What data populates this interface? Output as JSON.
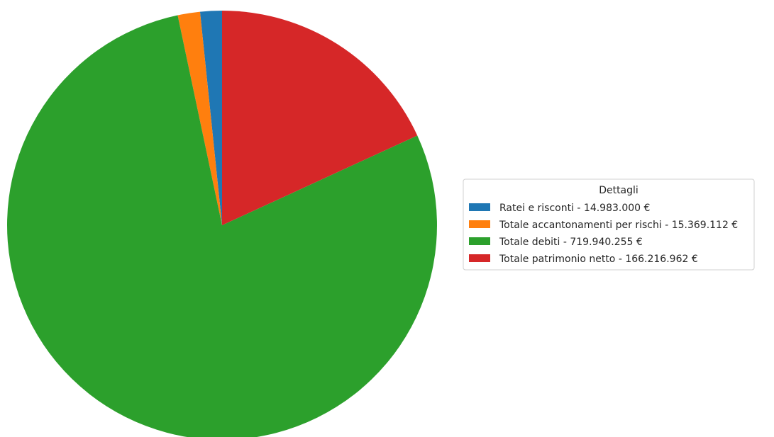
{
  "chart_data": {
    "type": "pie",
    "title": "",
    "legend": {
      "title": "Dettagli",
      "placement": "right"
    },
    "start_angle_deg": 90,
    "direction": "counterclockwise",
    "slices": [
      {
        "label": "Ratei e risconti - 14.983.000 €",
        "value": 14983000,
        "color": "#1f77b4"
      },
      {
        "label": "Totale accantonamenti per rischi - 15.369.112 €",
        "value": 15369112,
        "color": "#ff7f0e"
      },
      {
        "label": "Totale debiti - 719.940.255 €",
        "value": 719940255,
        "color": "#2ca02c"
      },
      {
        "label": "Totale patrimonio netto - 166.216.962 €",
        "value": 166216962,
        "color": "#d62728"
      }
    ]
  }
}
